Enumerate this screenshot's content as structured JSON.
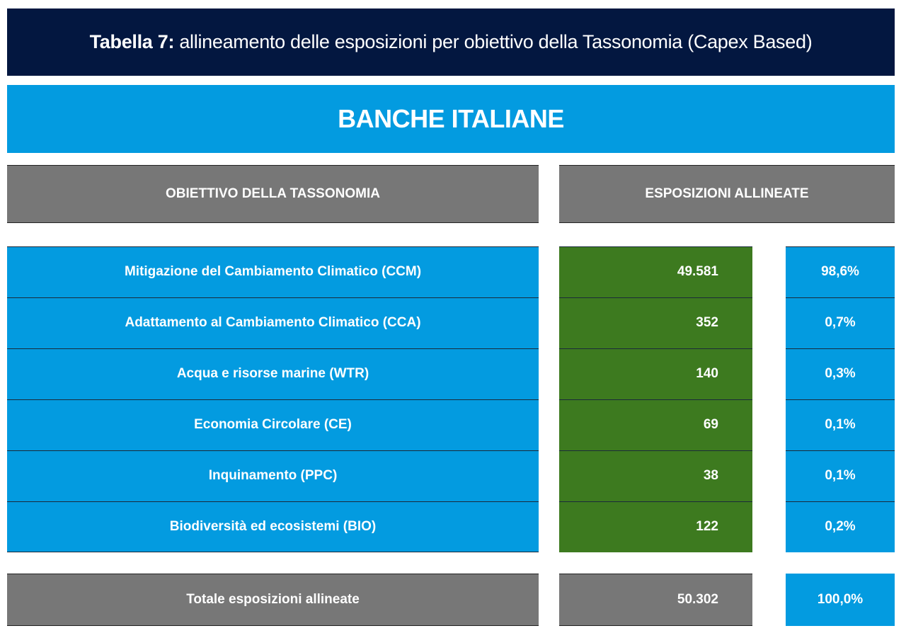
{
  "title": {
    "bold": "Tabella 7:",
    "rest": " allineamento delle esposizioni per obiettivo della Tassonomia (Capex Based)"
  },
  "bank": "BANCHE ITALIANE",
  "headers": {
    "objective": "OBIETTIVO DELLA TASSONOMIA",
    "exposures": "ESPOSIZIONI ALLINEATE"
  },
  "rows": [
    {
      "name": "Mitigazione del Cambiamento Climatico (CCM)",
      "value": "49.581",
      "pct": "98,6%"
    },
    {
      "name": "Adattamento al Cambiamento Climatico (CCA)",
      "value": "352",
      "pct": "0,7%"
    },
    {
      "name": "Acqua e risorse marine (WTR)",
      "value": "140",
      "pct": "0,3%"
    },
    {
      "name": "Economia Circolare (CE)",
      "value": "69",
      "pct": "0,1%"
    },
    {
      "name": "Inquinamento (PPC)",
      "value": "38",
      "pct": "0,1%"
    },
    {
      "name": "Biodiversità ed ecosistemi (BIO)",
      "value": "122",
      "pct": "0,2%"
    }
  ],
  "total": {
    "name": "Totale esposizioni allineate",
    "value": "50.302",
    "pct": "100,0%"
  },
  "colors": {
    "navy": "#031740",
    "blue": "#039be0",
    "gray": "#777777",
    "green": "#3d7a1f"
  }
}
